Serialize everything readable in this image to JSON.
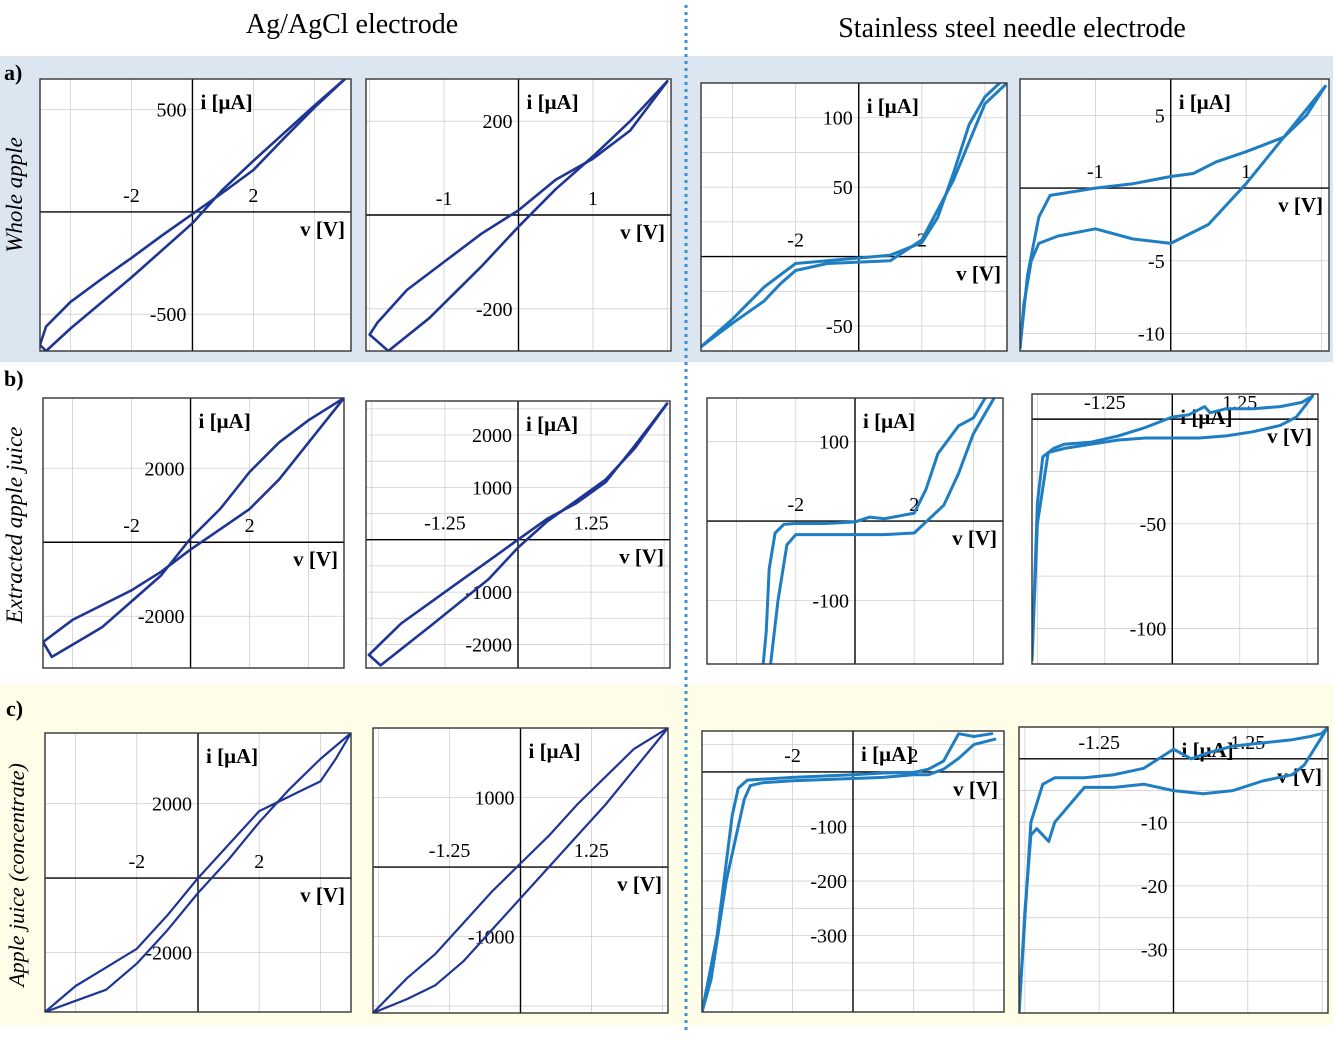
{
  "headers": {
    "left": "Ag/AgCl  electrode",
    "right": "Stainless steel needle electrode"
  },
  "rows": [
    {
      "letter": "a)",
      "label": "Whole apple",
      "bg": "#dce6f1"
    },
    {
      "letter": "b)",
      "label": "Extracted apple juice",
      "bg": "#ffffff"
    },
    {
      "letter": "c)",
      "label": "Apple juice (concentrate)",
      "bg": "#fefde8"
    }
  ],
  "colors": {
    "agagcl": "#1f3594",
    "steel": "#1f7ec2",
    "axis": "#000000",
    "grid": "#cfcfcf",
    "divider": "#3d8fd6"
  },
  "axis_labels": {
    "x": "v [V]",
    "y": "i [μA]"
  },
  "chart_data": [
    {
      "id": "a1",
      "row": 0,
      "type": "line",
      "xlim": [
        -5,
        5.2
      ],
      "ylim": [
        -680,
        650
      ],
      "xticks": [
        {
          "v": -2,
          "t": "-2"
        },
        {
          "v": 2,
          "t": "2"
        }
      ],
      "yticks": [
        {
          "v": 500,
          "t": "500"
        },
        {
          "v": -500,
          "t": "-500"
        }
      ],
      "series": [
        {
          "x": [
            -5,
            -4.8,
            -4,
            -2,
            0,
            1,
            2,
            3,
            4,
            5
          ],
          "y": [
            -650,
            -680,
            -570,
            -320,
            -55,
            110,
            250,
            385,
            520,
            650
          ]
        },
        {
          "x": [
            5,
            4,
            3,
            2,
            1,
            0,
            -1,
            -2,
            -3,
            -4,
            -4.8,
            -5
          ],
          "y": [
            650,
            510,
            360,
            205,
            95,
            -10,
            -115,
            -225,
            -330,
            -440,
            -560,
            -650
          ]
        }
      ]
    },
    {
      "id": "a2",
      "row": 0,
      "type": "line",
      "xlim": [
        -2.05,
        2.05
      ],
      "ylim": [
        -290,
        290
      ],
      "xticks": [
        {
          "v": -1,
          "t": "-1"
        },
        {
          "v": 1,
          "t": "1"
        }
      ],
      "yticks": [
        {
          "v": 200,
          "t": "200"
        },
        {
          "v": -200,
          "t": "-200"
        }
      ],
      "series": [
        {
          "x": [
            -2,
            -1.75,
            -1.2,
            -0.5,
            0,
            0.5,
            1,
            1.5,
            2
          ],
          "y": [
            -255,
            -290,
            -220,
            -110,
            -25,
            55,
            125,
            200,
            285
          ]
        },
        {
          "x": [
            2,
            1.5,
            1,
            0.5,
            0,
            -0.5,
            -1,
            -1.5,
            -1.9,
            -2
          ],
          "y": [
            285,
            180,
            120,
            75,
            10,
            -40,
            -100,
            -160,
            -230,
            -255
          ]
        }
      ]
    },
    {
      "id": "a3",
      "row": 0,
      "type": "line",
      "xlim": [
        -5,
        4.7
      ],
      "ylim": [
        -68,
        125
      ],
      "xticks": [
        {
          "v": -2,
          "t": "-2"
        },
        {
          "v": 2,
          "t": "2"
        }
      ],
      "yticks": [
        {
          "v": 100,
          "t": "100"
        },
        {
          "v": 50,
          "t": "50"
        },
        {
          "v": -50,
          "t": "-50"
        }
      ],
      "series": [
        {
          "x": [
            -5,
            -4,
            -3,
            -2,
            0,
            1,
            2,
            2.5,
            3,
            3.5,
            4,
            4.7
          ],
          "y": [
            -65,
            -45,
            -22,
            -5,
            -1,
            1,
            10,
            28,
            60,
            95,
            115,
            130
          ]
        },
        {
          "x": [
            4.7,
            4,
            3,
            2,
            1,
            0,
            -1,
            -2,
            -2.5,
            -3,
            -4,
            -5
          ],
          "y": [
            125,
            110,
            55,
            12,
            -3,
            -4,
            -5,
            -10,
            -20,
            -32,
            -48,
            -65
          ]
        }
      ]
    },
    {
      "id": "a4",
      "row": 0,
      "type": "line",
      "xlim": [
        -2,
        2.1
      ],
      "ylim": [
        -11.2,
        7.5
      ],
      "xticks": [
        {
          "v": -1,
          "t": "-1"
        },
        {
          "v": 1,
          "t": "1"
        }
      ],
      "yticks": [
        {
          "v": 5,
          "t": "5"
        },
        {
          "v": -5,
          "t": "-5"
        },
        {
          "v": -10,
          "t": "-10"
        }
      ],
      "series": [
        {
          "x": [
            -2,
            -1.9,
            -1.75,
            -1.6,
            -1,
            -0.5,
            0,
            0.3,
            0.6,
            1,
            1.5,
            1.8,
            2.05
          ],
          "y": [
            -11,
            -6,
            -2,
            -0.5,
            0,
            0.3,
            0.8,
            1,
            1.8,
            2.5,
            3.5,
            5,
            7
          ]
        },
        {
          "x": [
            2.05,
            1.5,
            1,
            0.5,
            0,
            -0.5,
            -1,
            -1.5,
            -1.75,
            -1.85,
            -1.95,
            -2
          ],
          "y": [
            7,
            3.5,
            0.3,
            -2.5,
            -3.8,
            -3.5,
            -2.8,
            -3.3,
            -3.8,
            -5,
            -8,
            -11
          ]
        }
      ]
    },
    {
      "id": "b1",
      "row": 1,
      "type": "line",
      "xlim": [
        -5,
        5.2
      ],
      "ylim": [
        -3400,
        3900
      ],
      "xticks": [
        {
          "v": -2,
          "t": "-2"
        },
        {
          "v": 2,
          "t": "2"
        }
      ],
      "yticks": [
        {
          "v": 2000,
          "t": "2000"
        },
        {
          "v": -2000,
          "t": "-2000"
        }
      ],
      "series": [
        {
          "x": [
            -5,
            -4.7,
            -3,
            -1,
            0,
            1,
            2,
            3,
            4,
            5.2
          ],
          "y": [
            -2700,
            -3100,
            -2300,
            -900,
            100,
            900,
            1900,
            2700,
            3300,
            3900
          ]
        },
        {
          "x": [
            5.2,
            4,
            3,
            2,
            1,
            0,
            -1,
            -2,
            -3,
            -4,
            -5
          ],
          "y": [
            3900,
            2700,
            1700,
            900,
            350,
            -200,
            -800,
            -1300,
            -1700,
            -2100,
            -2700
          ]
        }
      ]
    },
    {
      "id": "b2",
      "row": 1,
      "type": "line",
      "xlim": [
        -2.6,
        2.6
      ],
      "ylim": [
        -2450,
        2650
      ],
      "xticks": [
        {
          "v": -1.25,
          "t": "-1.25"
        },
        {
          "v": 1.25,
          "t": "1.25"
        }
      ],
      "yticks": [
        {
          "v": 2000,
          "t": "2000"
        },
        {
          "v": 1000,
          "t": "1000"
        },
        {
          "v": -1000,
          "t": "-1000"
        },
        {
          "v": -2000,
          "t": "-2000"
        }
      ],
      "series": [
        {
          "x": [
            -2.55,
            -2.35,
            -1.5,
            -0.5,
            0,
            0.5,
            1,
            1.5,
            2,
            2.55
          ],
          "y": [
            -2200,
            -2400,
            -1650,
            -750,
            -150,
            350,
            750,
            1150,
            1750,
            2600
          ]
        },
        {
          "x": [
            2.55,
            2,
            1.5,
            1,
            0.5,
            0,
            -0.5,
            -1,
            -1.5,
            -2,
            -2.55
          ],
          "y": [
            2600,
            1800,
            1100,
            700,
            400,
            0,
            -400,
            -800,
            -1200,
            -1600,
            -2200
          ]
        }
      ]
    },
    {
      "id": "b3",
      "row": 1,
      "type": "line",
      "xlim": [
        -5,
        5
      ],
      "ylim": [
        -180,
        155
      ],
      "xticks": [
        {
          "v": -2,
          "t": "-2"
        },
        {
          "v": 2,
          "t": "2"
        }
      ],
      "yticks": [
        {
          "v": 100,
          "t": "100"
        },
        {
          "v": -100,
          "t": "-100"
        }
      ],
      "series": [
        {
          "x": [
            -3.1,
            -3.0,
            -2.9,
            -2.7,
            -2.4,
            -2,
            -1,
            0,
            0.5,
            1,
            2,
            2.4,
            2.8,
            3.1,
            3.5,
            4,
            4.4
          ],
          "y": [
            -180,
            -140,
            -60,
            -15,
            -4,
            -3,
            -3,
            -1,
            5,
            3,
            10,
            40,
            85,
            100,
            120,
            130,
            155
          ]
        },
        {
          "x": [
            4.7,
            4,
            3.5,
            3,
            2,
            1,
            0,
            -1,
            -2,
            -2.3,
            -2.6,
            -2.85
          ],
          "y": [
            155,
            110,
            60,
            20,
            -15,
            -17,
            -17,
            -17,
            -17,
            -30,
            -100,
            -180
          ]
        }
      ]
    },
    {
      "id": "b4",
      "row": 1,
      "type": "line",
      "xlim": [
        -2.6,
        2.7
      ],
      "ylim": [
        -117,
        12
      ],
      "xticks": [
        {
          "v": -1.25,
          "t": "-1.25"
        },
        {
          "v": 1.25,
          "t": "1.25"
        }
      ],
      "yticks": [
        {
          "v": -50,
          "t": "-50"
        },
        {
          "v": -100,
          "t": "-100"
        }
      ],
      "series": [
        {
          "x": [
            -2.6,
            -2.5,
            -2.4,
            -2.2,
            -2,
            -1.5,
            -1,
            -0.5,
            0,
            0.3,
            0.6,
            0.7,
            1,
            1.5,
            2,
            2.4,
            2.6
          ],
          "y": [
            -115,
            -40,
            -18,
            -14,
            -12,
            -11,
            -8,
            -4,
            1,
            2,
            6,
            3,
            5,
            5,
            6,
            8,
            11
          ]
        },
        {
          "x": [
            2.6,
            2.3,
            2,
            1.5,
            1,
            0.5,
            0,
            -0.5,
            -1,
            -1.5,
            -2,
            -2.3,
            -2.5,
            -2.6
          ],
          "y": [
            11,
            1,
            -3,
            -6,
            -8,
            -9,
            -9,
            -9,
            -10,
            -12,
            -14,
            -16,
            -50,
            -115
          ]
        }
      ]
    },
    {
      "id": "c1",
      "row": 2,
      "type": "line",
      "xlim": [
        -5,
        5
      ],
      "ylim": [
        -3600,
        3900
      ],
      "xticks": [
        {
          "v": -2,
          "t": "-2"
        },
        {
          "v": 2,
          "t": "2"
        }
      ],
      "yticks": [
        {
          "v": 2000,
          "t": "2000"
        },
        {
          "v": -2000,
          "t": "-2000"
        }
      ],
      "series": [
        {
          "x": [
            -5,
            -4,
            -3,
            -2,
            -1,
            0,
            1,
            2,
            3,
            3.5,
            4,
            4.5,
            5
          ],
          "y": [
            -3600,
            -2900,
            -2400,
            -1900,
            -1000,
            0,
            900,
            1800,
            2200,
            2400,
            2600,
            3200,
            3900
          ]
        },
        {
          "x": [
            5,
            4,
            3,
            2,
            1,
            0,
            -1,
            -2,
            -3,
            -4,
            -5
          ],
          "y": [
            3900,
            3200,
            2400,
            1500,
            500,
            -400,
            -1400,
            -2300,
            -3000,
            -3300,
            -3600
          ]
        }
      ]
    },
    {
      "id": "c2",
      "row": 2,
      "type": "line",
      "xlim": [
        -2.6,
        2.6
      ],
      "ylim": [
        -2100,
        2000
      ],
      "xticks": [
        {
          "v": -1.25,
          "t": "-1.25"
        },
        {
          "v": 1.25,
          "t": "1.25"
        }
      ],
      "yticks": [
        {
          "v": 1000,
          "t": "1000"
        },
        {
          "v": -1000,
          "t": "-1000"
        }
      ],
      "series": [
        {
          "x": [
            -2.6,
            -2,
            -1.5,
            -1,
            -0.5,
            0,
            0.5,
            1,
            1.5,
            2,
            2.6
          ],
          "y": [
            -2100,
            -1600,
            -1250,
            -800,
            -350,
            50,
            450,
            900,
            1300,
            1700,
            2000
          ]
        },
        {
          "x": [
            2.6,
            2,
            1.5,
            1,
            0.5,
            0,
            -0.5,
            -1,
            -1.5,
            -2,
            -2.6
          ],
          "y": [
            2000,
            1400,
            900,
            450,
            0,
            -450,
            -900,
            -1350,
            -1700,
            -1900,
            -2100
          ]
        }
      ]
    },
    {
      "id": "c3",
      "row": 2,
      "type": "line",
      "xlim": [
        -5,
        5
      ],
      "ylim": [
        -440,
        75
      ],
      "xticks": [
        {
          "v": -2,
          "t": "-2"
        },
        {
          "v": 2,
          "t": "2"
        }
      ],
      "yticks": [
        {
          "v": -100,
          "t": "-100"
        },
        {
          "v": -200,
          "t": "-200"
        },
        {
          "v": -300,
          "t": "-300"
        }
      ],
      "series": [
        {
          "x": [
            -5,
            -4.5,
            -4,
            -3.8,
            -3.5,
            -2,
            0,
            1,
            2,
            2.5,
            3,
            3.5,
            4,
            4.6
          ],
          "y": [
            -440,
            -300,
            -80,
            -30,
            -15,
            -10,
            -5,
            -2,
            -1,
            5,
            20,
            70,
            65,
            70
          ]
        },
        {
          "x": [
            4.7,
            4,
            3.5,
            3,
            2.5,
            2,
            1,
            0,
            -1,
            -2,
            -3,
            -3.4,
            -3.6,
            -4.2,
            -4.7,
            -5
          ],
          "y": [
            60,
            50,
            25,
            5,
            -5,
            -5,
            -10,
            -12,
            -14,
            -16,
            -20,
            -25,
            -50,
            -200,
            -380,
            -440
          ]
        }
      ]
    },
    {
      "id": "c4",
      "row": 2,
      "type": "line",
      "xlim": [
        -2.6,
        2.6
      ],
      "ylim": [
        -40,
        5
      ],
      "xticks": [
        {
          "v": -1.25,
          "t": "-1.25"
        },
        {
          "v": 1.25,
          "t": "1.25"
        }
      ],
      "yticks": [
        {
          "v": -10,
          "t": "-10"
        },
        {
          "v": -20,
          "t": "-20"
        },
        {
          "v": -30,
          "t": "-30"
        }
      ],
      "series": [
        {
          "x": [
            -2.6,
            -2.5,
            -2.4,
            -2.2,
            -2,
            -1.5,
            -1,
            -0.5,
            0,
            0.3,
            0.6,
            1,
            1.5,
            2,
            2.3,
            2.5,
            2.6
          ],
          "y": [
            -40,
            -25,
            -10,
            -4,
            -3,
            -3,
            -2.5,
            -1.5,
            1.5,
            0,
            1,
            2,
            2.5,
            3,
            3.5,
            4,
            5
          ]
        },
        {
          "x": [
            2.6,
            2.4,
            2.2,
            2,
            1.5,
            1,
            0.5,
            0,
            -0.5,
            -1,
            -1.5,
            -2,
            -2.1,
            -2.3,
            -2.4,
            -2.5,
            -2.6
          ],
          "y": [
            5,
            2,
            -1,
            -2.5,
            -3.5,
            -5,
            -5.5,
            -5,
            -4,
            -4.5,
            -4.5,
            -10,
            -13,
            -11,
            -12,
            -24,
            -40
          ]
        }
      ]
    }
  ]
}
